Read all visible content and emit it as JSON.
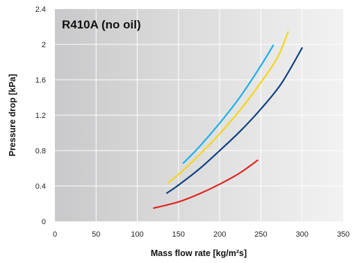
{
  "chart_data": {
    "type": "line",
    "title": "R410A (no oil)",
    "xlabel": "Mass flow rate [kg/m²s]",
    "ylabel": "Pressure drop [kPa]",
    "xlim": [
      0,
      350
    ],
    "ylim": [
      0,
      2.4
    ],
    "xticks": [
      "0",
      "50",
      "100",
      "150",
      "200",
      "250",
      "300",
      "350"
    ],
    "yticks": [
      "0",
      "0.4",
      "0.8",
      "1.2",
      "1.6",
      "2",
      "2.4"
    ],
    "grid": true,
    "legend": "none",
    "series": [
      {
        "color": "#1ab0e8",
        "x": [
          156,
          175,
          200,
          225,
          250,
          265
        ],
        "y": [
          0.66,
          0.84,
          1.11,
          1.41,
          1.76,
          1.99
        ]
      },
      {
        "color": "#f5d518",
        "x": [
          138,
          150,
          175,
          200,
          225,
          250,
          270,
          283
        ],
        "y": [
          0.44,
          0.53,
          0.75,
          0.99,
          1.26,
          1.57,
          1.85,
          2.14
        ]
      },
      {
        "color": "#0d3f80",
        "x": [
          136,
          150,
          175,
          200,
          225,
          250,
          275,
          300
        ],
        "y": [
          0.32,
          0.41,
          0.59,
          0.8,
          1.02,
          1.27,
          1.56,
          1.96
        ]
      },
      {
        "color": "#e0221e",
        "x": [
          120,
          150,
          175,
          200,
          225,
          246
        ],
        "y": [
          0.15,
          0.22,
          0.31,
          0.42,
          0.55,
          0.69
        ]
      }
    ]
  }
}
